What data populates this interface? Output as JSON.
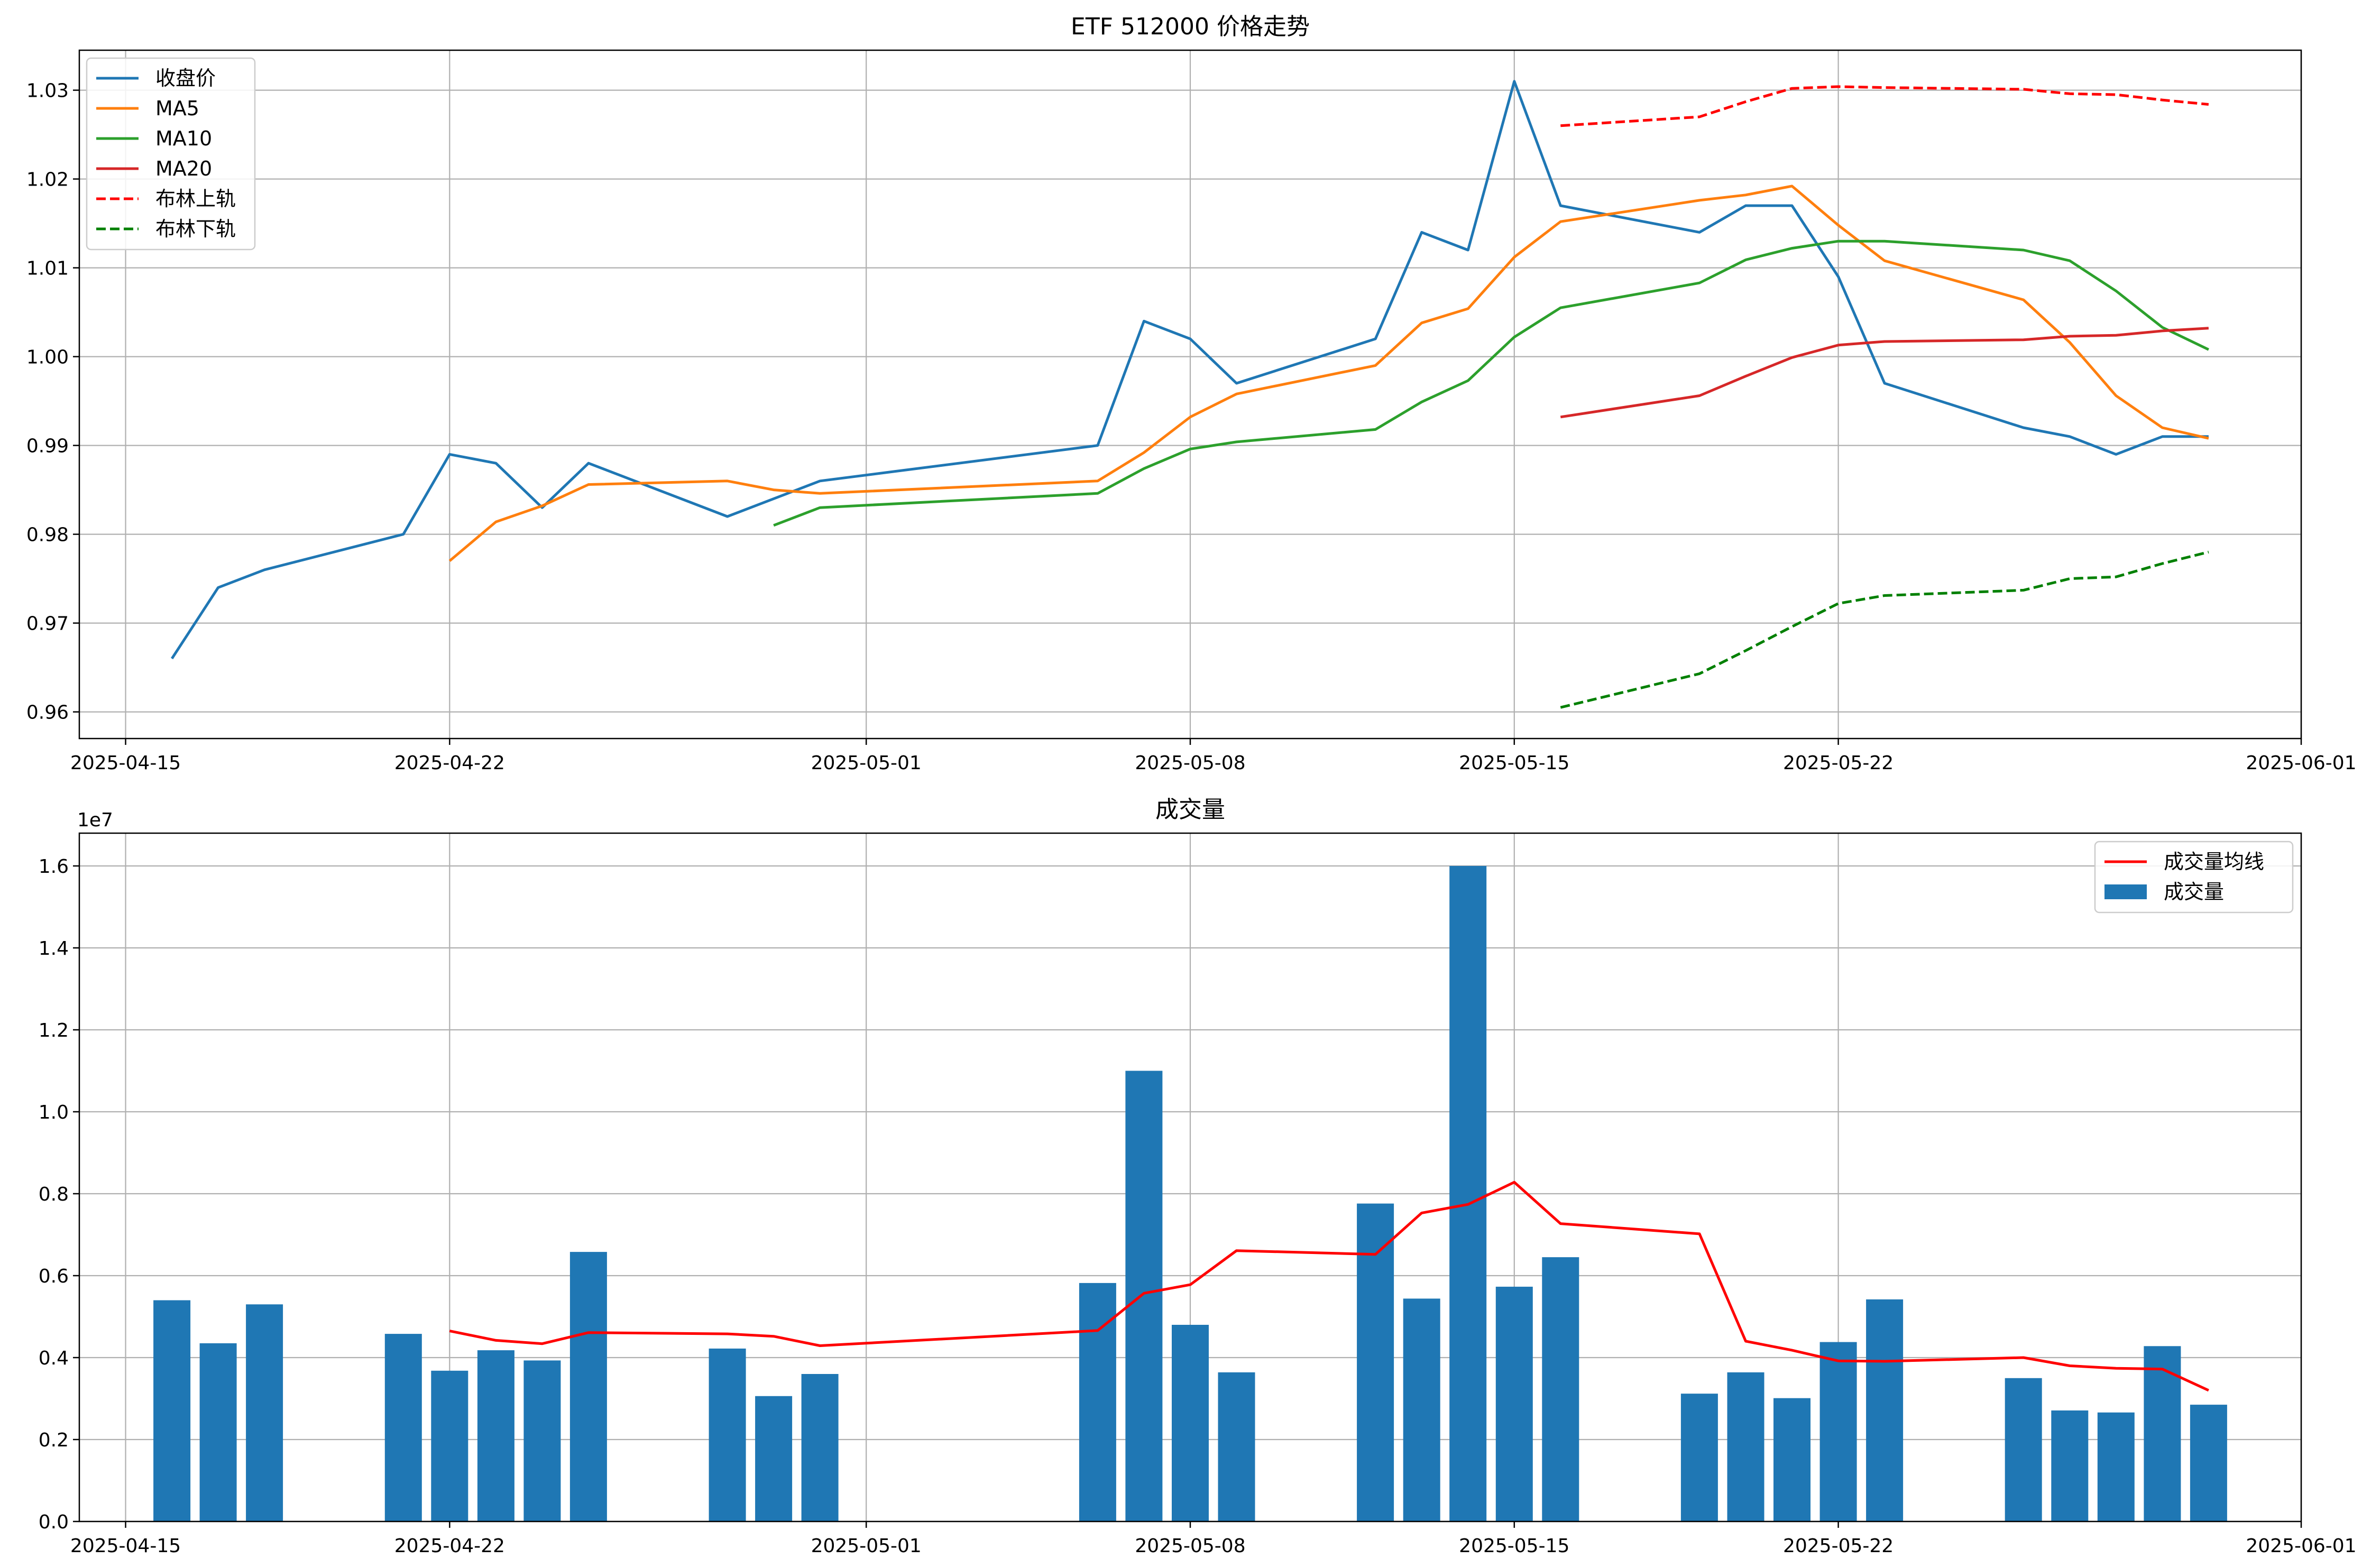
{
  "chart_data": [
    {
      "type": "line",
      "title": "ETF 512000 价格走势",
      "xlabel": "",
      "ylabel": "",
      "x_ticks": [
        "2025-04-15",
        "2025-04-22",
        "2025-05-01",
        "2025-05-08",
        "2025-05-15",
        "2025-05-22",
        "2025-06-01"
      ],
      "y_ticks": [
        "0.96",
        "0.97",
        "0.98",
        "0.99",
        "1.00",
        "1.01",
        "1.02",
        "1.03"
      ],
      "xlim": [
        "2025-04-14",
        "2025-06-01"
      ],
      "ylim": [
        0.957,
        1.0345
      ],
      "grid": true,
      "legend_position": "top-left",
      "x": [
        "2025-04-16",
        "2025-04-17",
        "2025-04-18",
        "2025-04-21",
        "2025-04-22",
        "2025-04-23",
        "2025-04-24",
        "2025-04-25",
        "2025-04-28",
        "2025-04-29",
        "2025-04-30",
        "2025-05-06",
        "2025-05-07",
        "2025-05-08",
        "2025-05-09",
        "2025-05-12",
        "2025-05-13",
        "2025-05-14",
        "2025-05-15",
        "2025-05-16",
        "2025-05-19",
        "2025-05-20",
        "2025-05-21",
        "2025-05-22",
        "2025-05-23",
        "2025-05-26",
        "2025-05-27",
        "2025-05-28",
        "2025-05-29",
        "2025-05-30"
      ],
      "series": [
        {
          "name": "收盘价",
          "color": "#1f77b4",
          "dash": "solid",
          "values": [
            0.966,
            0.974,
            0.976,
            0.98,
            0.989,
            0.988,
            0.983,
            0.988,
            0.982,
            0.984,
            0.986,
            0.99,
            1.004,
            1.002,
            0.997,
            1.002,
            1.014,
            1.012,
            1.031,
            1.017,
            1.014,
            1.017,
            1.017,
            1.009,
            0.997,
            0.992,
            0.991,
            0.989,
            0.991,
            0.991
          ]
        },
        {
          "name": "MA5",
          "color": "#ff7f0e",
          "dash": "solid",
          "values": [
            null,
            null,
            null,
            null,
            0.977,
            0.9814,
            0.9832,
            0.9856,
            0.986,
            0.985,
            0.9846,
            0.986,
            0.9892,
            0.9932,
            0.9958,
            0.999,
            1.0038,
            1.0054,
            1.0112,
            1.0152,
            1.0176,
            1.0182,
            1.0192,
            1.0148,
            1.0108,
            1.0064,
            1.0016,
            0.9956,
            0.992,
            0.9908
          ]
        },
        {
          "name": "MA10",
          "color": "#2ca02c",
          "dash": "solid",
          "values": [
            null,
            null,
            null,
            null,
            null,
            null,
            null,
            null,
            null,
            0.981,
            0.983,
            0.9846,
            0.9874,
            0.9896,
            0.9904,
            0.9918,
            0.9949,
            0.9973,
            1.0022,
            1.0055,
            1.0083,
            1.0109,
            1.0122,
            1.013,
            1.013,
            1.012,
            1.0108,
            1.0074,
            1.0033,
            1.0008
          ]
        },
        {
          "name": "MA20",
          "color": "#d62728",
          "dash": "solid",
          "values": [
            null,
            null,
            null,
            null,
            null,
            null,
            null,
            null,
            null,
            null,
            null,
            null,
            null,
            null,
            null,
            null,
            null,
            null,
            null,
            0.9932,
            0.9956,
            0.9978,
            0.9999,
            1.0013,
            1.0017,
            1.0019,
            1.0023,
            1.0024,
            1.0029,
            1.0032
          ]
        },
        {
          "name": "布林上轨",
          "color": "#ff0000",
          "dash": "dashed",
          "values": [
            null,
            null,
            null,
            null,
            null,
            null,
            null,
            null,
            null,
            null,
            null,
            null,
            null,
            null,
            null,
            null,
            null,
            null,
            null,
            1.026,
            1.027,
            1.0287,
            1.0302,
            1.0304,
            1.0303,
            1.0301,
            1.0296,
            1.0295,
            1.0289,
            1.0284
          ]
        },
        {
          "name": "布林下轨",
          "color": "#008000",
          "dash": "dashed",
          "values": [
            null,
            null,
            null,
            null,
            null,
            null,
            null,
            null,
            null,
            null,
            null,
            null,
            null,
            null,
            null,
            null,
            null,
            null,
            null,
            0.9605,
            0.9643,
            0.9669,
            0.9696,
            0.9722,
            0.9731,
            0.9737,
            0.975,
            0.9752,
            0.9767,
            0.978
          ]
        }
      ]
    },
    {
      "type": "bar",
      "title": "成交量",
      "xlabel": "",
      "ylabel": "",
      "y_offset_label": "1e7",
      "x_ticks": [
        "2025-04-15",
        "2025-04-22",
        "2025-05-01",
        "2025-05-08",
        "2025-05-15",
        "2025-05-22",
        "2025-06-01"
      ],
      "y_ticks": [
        "0.0",
        "0.2",
        "0.4",
        "0.6",
        "0.8",
        "1.0",
        "1.2",
        "1.4",
        "1.6"
      ],
      "xlim": [
        "2025-04-14",
        "2025-06-01"
      ],
      "ylim": [
        0,
        16.8
      ],
      "y_unit": "1e6",
      "grid": true,
      "legend_position": "top-right",
      "x": [
        "2025-04-16",
        "2025-04-17",
        "2025-04-18",
        "2025-04-21",
        "2025-04-22",
        "2025-04-23",
        "2025-04-24",
        "2025-04-25",
        "2025-04-28",
        "2025-04-29",
        "2025-04-30",
        "2025-05-06",
        "2025-05-07",
        "2025-05-08",
        "2025-05-09",
        "2025-05-12",
        "2025-05-13",
        "2025-05-14",
        "2025-05-15",
        "2025-05-16",
        "2025-05-19",
        "2025-05-20",
        "2025-05-21",
        "2025-05-22",
        "2025-05-23",
        "2025-05-26",
        "2025-05-27",
        "2025-05-28",
        "2025-05-29",
        "2025-05-30"
      ],
      "bars": {
        "name": "成交量",
        "color": "#1f77b4",
        "values": [
          5.4,
          4.35,
          5.3,
          4.58,
          3.68,
          4.18,
          3.93,
          6.58,
          4.22,
          3.06,
          3.6,
          5.82,
          11.0,
          4.8,
          3.64,
          7.76,
          5.44,
          16.0,
          5.73,
          6.45,
          3.12,
          3.64,
          3.01,
          4.38,
          5.42,
          3.5,
          2.71,
          2.66,
          4.28,
          2.85
        ]
      },
      "line": {
        "name": "成交量均线",
        "color": "#ff0000",
        "values": [
          null,
          null,
          null,
          null,
          4.65,
          4.42,
          4.34,
          4.61,
          4.58,
          4.52,
          4.29,
          4.66,
          5.57,
          5.78,
          6.61,
          6.52,
          7.53,
          7.74,
          8.28,
          7.27,
          7.02,
          4.4,
          4.18,
          3.92,
          3.91,
          4.0,
          3.8,
          3.74,
          3.72,
          3.2
        ]
      }
    }
  ]
}
